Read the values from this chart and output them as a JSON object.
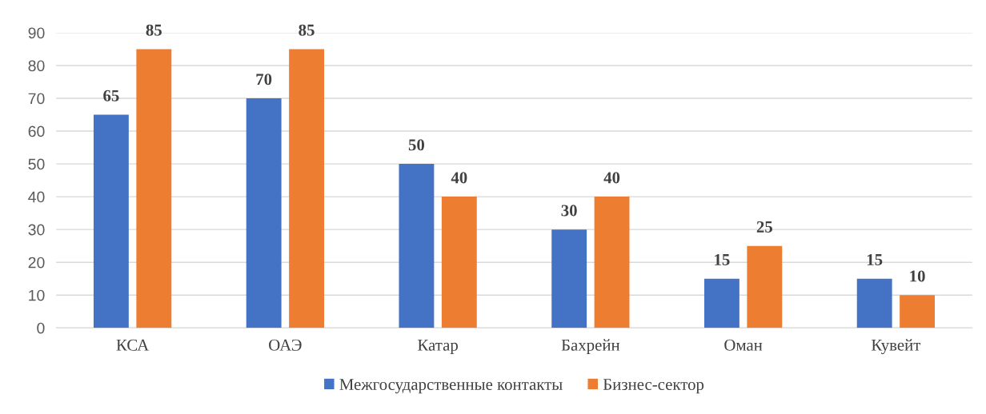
{
  "chart_data": {
    "type": "bar",
    "categories": [
      "КСА",
      "ОАЭ",
      "Катар",
      "Бахрейн",
      "Оман",
      "Кувейт"
    ],
    "series": [
      {
        "name": "Межгосударственные контакты",
        "color": "#4472c4",
        "values": [
          65,
          70,
          50,
          30,
          15,
          15
        ]
      },
      {
        "name": "Бизнес-сектор",
        "color": "#ed7d31",
        "values": [
          85,
          85,
          40,
          40,
          25,
          10
        ]
      }
    ],
    "ylim": [
      0,
      90
    ],
    "yticks": [
      0,
      10,
      20,
      30,
      40,
      50,
      60,
      70,
      80,
      90
    ],
    "grid": "y",
    "legend": "bottom",
    "data_labels": true
  }
}
